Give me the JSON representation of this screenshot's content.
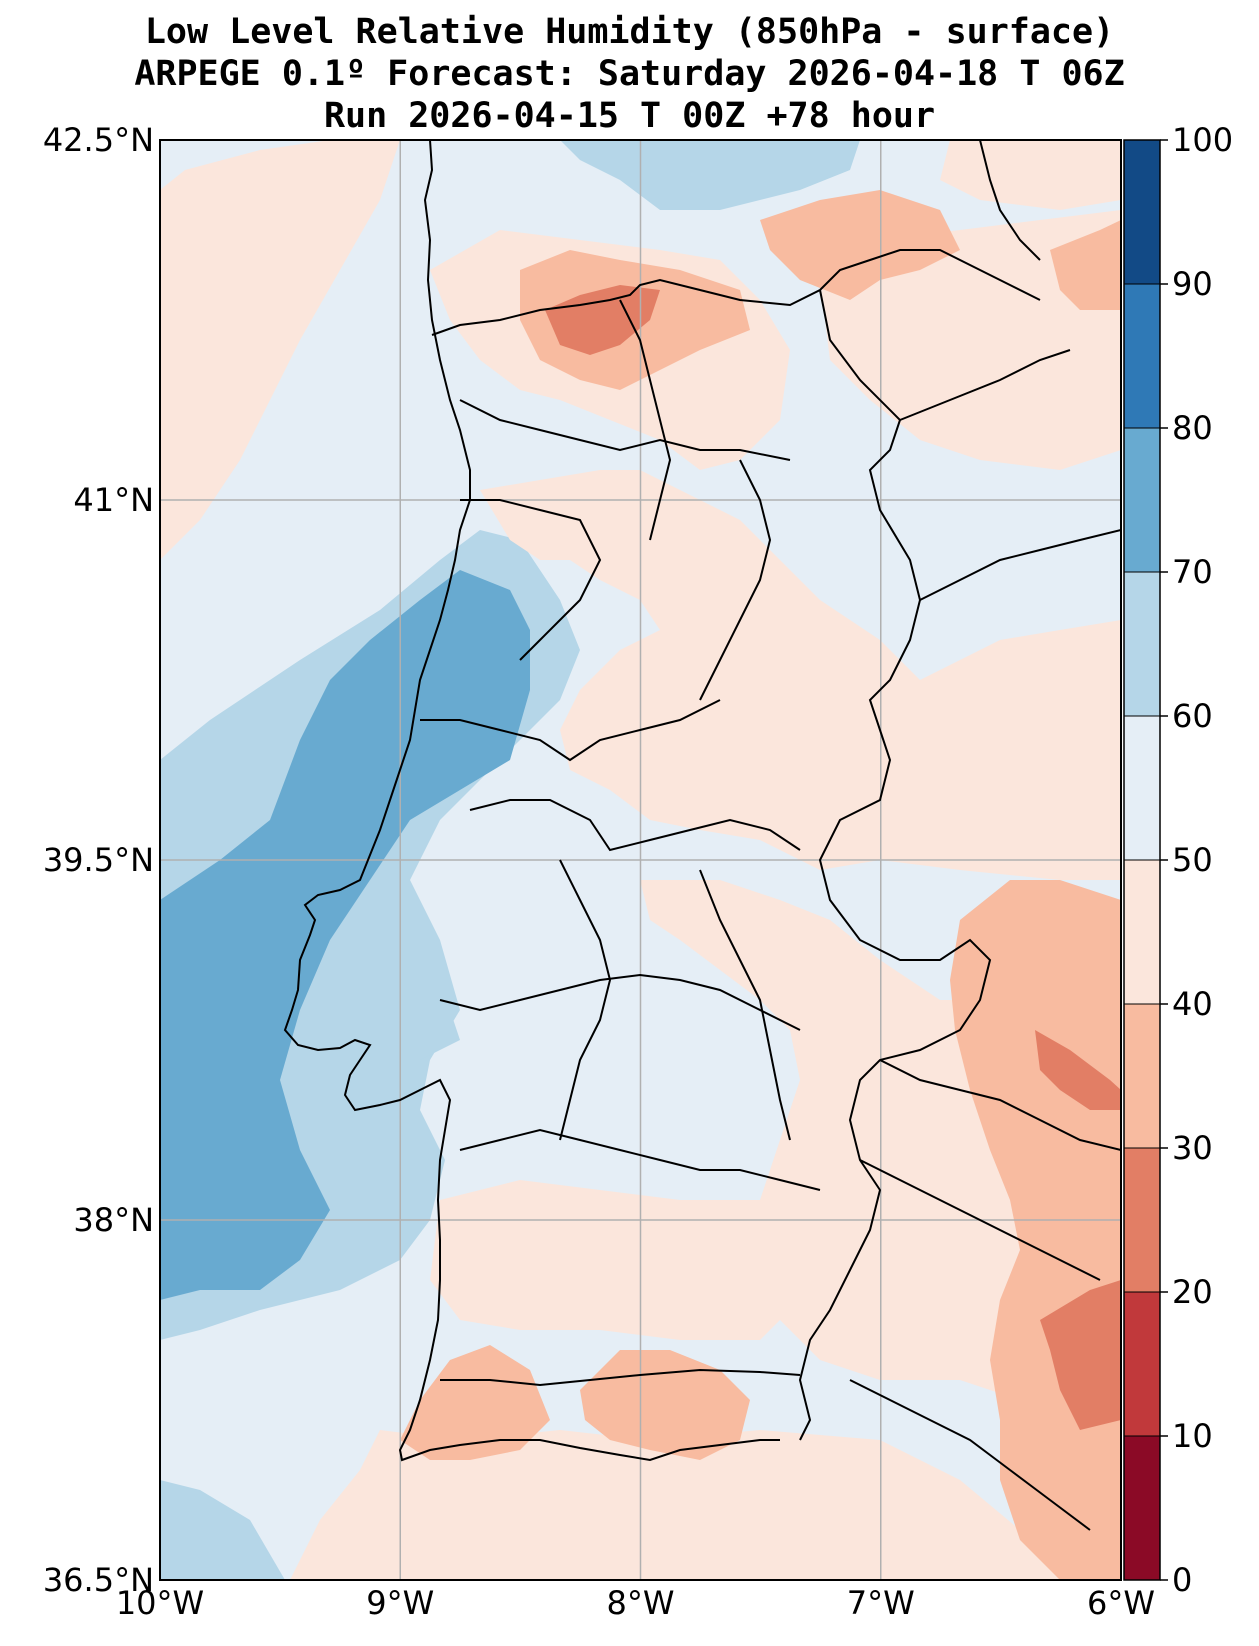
{
  "title": {
    "line1": "Low Level Relative Humidity (850hPa - surface)",
    "line2": "ARPEGE 0.1º Forecast: Saturday 2026-04-18 T 06Z",
    "line3": "Run 2026-04-15 T 00Z +78 hour"
  },
  "map": {
    "extent": {
      "lon_min": -10,
      "lon_max": -6,
      "lat_min": 36.5,
      "lat_max": 42.5
    },
    "lat_ticks": [
      {
        "value": 42.5,
        "label": "42.5°N"
      },
      {
        "value": 41,
        "label": "41°N"
      },
      {
        "value": 39.5,
        "label": "39.5°N"
      },
      {
        "value": 38,
        "label": "38°N"
      },
      {
        "value": 36.5,
        "label": "36.5°N"
      }
    ],
    "lon_ticks": [
      {
        "value": -10,
        "label": "10°W"
      },
      {
        "value": -9,
        "label": "9°W"
      },
      {
        "value": -8,
        "label": "8°W"
      },
      {
        "value": -7,
        "label": "7°W"
      },
      {
        "value": -6,
        "label": "6°W"
      }
    ],
    "gridlines": true
  },
  "colorbar": {
    "min": 0,
    "max": 100,
    "levels": [
      0,
      10,
      20,
      30,
      40,
      50,
      60,
      70,
      80,
      90,
      100
    ],
    "labels": [
      "0",
      "10",
      "20",
      "30",
      "40",
      "50",
      "60",
      "70",
      "80",
      "90",
      "100"
    ],
    "colors": [
      "#8b0a26",
      "#c1393b",
      "#e27e65",
      "#f8bba0",
      "#fbe6dc",
      "#e5eef6",
      "#b5d6e8",
      "#68aad0",
      "#2f79b6",
      "#124a86"
    ]
  },
  "colors": {
    "rh_40_50": "#fbe6dc",
    "rh_50_60": "#e5eef6",
    "rh_60_70": "#b5d6e8",
    "rh_70_80": "#68aad0",
    "rh_30_40": "#f8bba0",
    "rh_20_30": "#e27e65",
    "gridline": "#b0b0b0",
    "border": "#000000"
  }
}
